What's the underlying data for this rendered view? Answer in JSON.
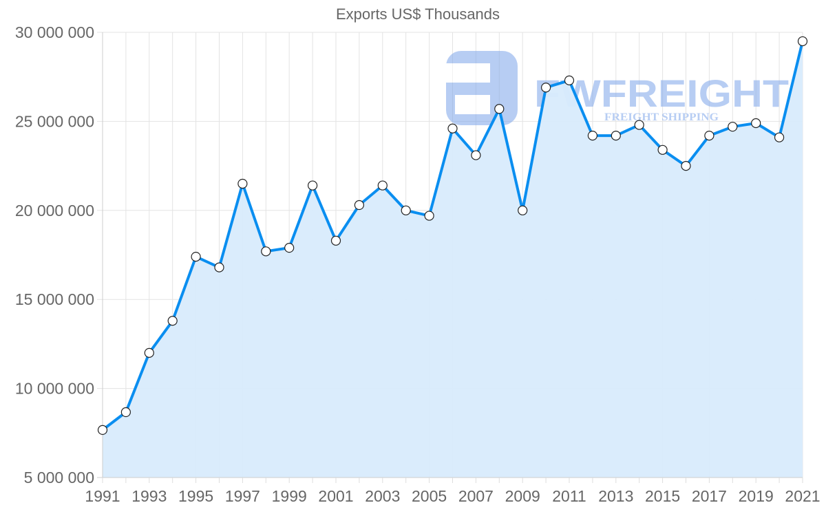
{
  "chart_data": {
    "type": "line",
    "title": "Exports US$ Thousands",
    "xlabel": "",
    "ylabel": "",
    "x": [
      1991,
      1992,
      1993,
      1994,
      1995,
      1996,
      1997,
      1998,
      1999,
      2000,
      2001,
      2002,
      2003,
      2004,
      2005,
      2006,
      2007,
      2008,
      2009,
      2010,
      2011,
      2012,
      2013,
      2014,
      2015,
      2016,
      2017,
      2018,
      2019,
      2020,
      2021
    ],
    "series": [
      {
        "name": "Exports US$ Thousands",
        "values": [
          7670000,
          8670000,
          12000000,
          13800000,
          17400000,
          16800000,
          21500000,
          17700000,
          17900000,
          21400000,
          18300000,
          20300000,
          21400000,
          20000000,
          19700000,
          24600000,
          23100000,
          25700000,
          20000000,
          26900000,
          27300000,
          24200000,
          24200000,
          24800000,
          23400000,
          22500000,
          24200000,
          24700000,
          24900000,
          24100000,
          29500000
        ],
        "color": "#0a8ef0",
        "fill": "#d8ebfc"
      }
    ],
    "ylim": [
      5000000,
      30000000
    ],
    "yticks": [
      5000000,
      10000000,
      15000000,
      20000000,
      25000000,
      30000000
    ],
    "ytick_labels": [
      "5 000 000",
      "10 000 000",
      "15 000 000",
      "20 000 000",
      "25 000 000",
      "30 000 000"
    ],
    "xtick_labels": [
      "1991",
      "1993",
      "1995",
      "1997",
      "1999",
      "2001",
      "2003",
      "2005",
      "2007",
      "2009",
      "2011",
      "2013",
      "2015",
      "2017",
      "2019",
      "2021"
    ],
    "grid": true,
    "legend": "none",
    "area_fill": true
  },
  "watermark": {
    "brand": "FWFREIGHT",
    "tagline": "FREIGHT SHIPPING",
    "color": "#7ea6ea"
  },
  "colors": {
    "line": "#0a8ef0",
    "area": "#d8ebfc",
    "grid": "#e3e3e3",
    "text": "#666666"
  }
}
